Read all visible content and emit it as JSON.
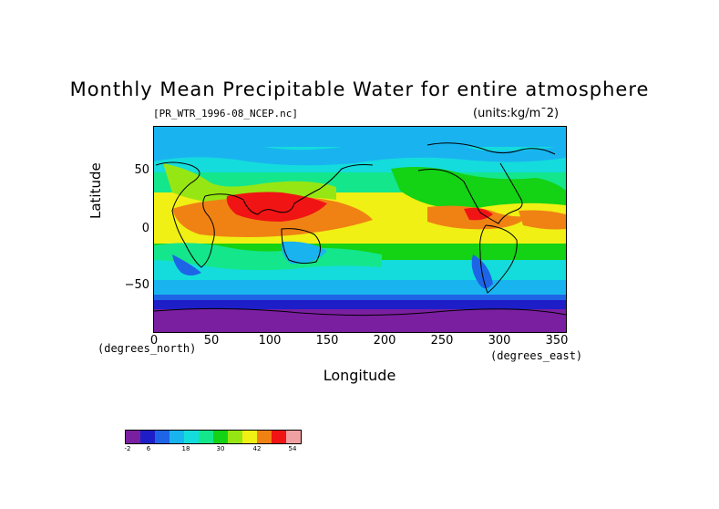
{
  "title": "Monthly Mean Precipitable Water for entire atmosphere",
  "filename": "[PR_WTR_1996-08_NCEP.nc]",
  "units": "(units:kg/m¯2)",
  "y_axis": {
    "label": "Latitude",
    "units": "(degrees_north)",
    "ticks": [
      "50",
      "0",
      "−50"
    ]
  },
  "x_axis": {
    "label": "Longitude",
    "units": "(degrees_east)",
    "ticks": [
      "0",
      "50",
      "100",
      "150",
      "200",
      "250",
      "300",
      "350"
    ]
  },
  "colorbar": {
    "colors": [
      "#7a1fa0",
      "#1e1ec8",
      "#1e64e6",
      "#19b4f0",
      "#14dcdc",
      "#14e68c",
      "#14d214",
      "#96e614",
      "#f0f014",
      "#f08214",
      "#f01414",
      "#f0a0a0"
    ],
    "tick_labels": [
      "-2",
      "6",
      "18",
      "30",
      "42",
      "54"
    ]
  },
  "chart_data": {
    "type": "heatmap",
    "variable": "Precipitable Water",
    "units": "kg/m^2",
    "xlim": [
      0,
      357.5
    ],
    "ylim": [
      -90,
      90
    ],
    "zones": [
      {
        "lat_range": [
          -90,
          -65
        ],
        "value": -2
      },
      {
        "lat_range": [
          -65,
          -45
        ],
        "value": 6
      },
      {
        "lat_range": [
          -45,
          -30
        ],
        "value": 12
      },
      {
        "lat_range": [
          -30,
          -15
        ],
        "value": 24
      },
      {
        "lat_range": [
          -15,
          0
        ],
        "value": 40
      },
      {
        "lat_range": [
          0,
          25
        ],
        "value": 50
      },
      {
        "lat_range": [
          25,
          45
        ],
        "value": 30
      },
      {
        "lat_range": [
          45,
          65
        ],
        "value": 18
      },
      {
        "lat_range": [
          65,
          90
        ],
        "value": 10
      }
    ]
  }
}
